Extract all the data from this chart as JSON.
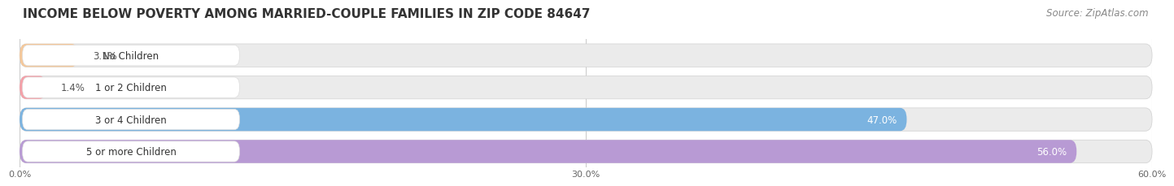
{
  "title": "INCOME BELOW POVERTY AMONG MARRIED-COUPLE FAMILIES IN ZIP CODE 84647",
  "source": "Source: ZipAtlas.com",
  "categories": [
    "No Children",
    "1 or 2 Children",
    "3 or 4 Children",
    "5 or more Children"
  ],
  "values": [
    3.1,
    1.4,
    47.0,
    56.0
  ],
  "bar_colors": [
    "#f5c89a",
    "#f4a0a8",
    "#7bb3e0",
    "#b89ad4"
  ],
  "xlim": [
    0,
    60
  ],
  "xtick_labels": [
    "0.0%",
    "30.0%",
    "60.0%"
  ],
  "bg_color": "#ffffff",
  "bar_bg_color": "#ebebeb",
  "title_fontsize": 11,
  "source_fontsize": 8.5,
  "label_fontsize": 8.5,
  "value_fontsize": 8.5
}
